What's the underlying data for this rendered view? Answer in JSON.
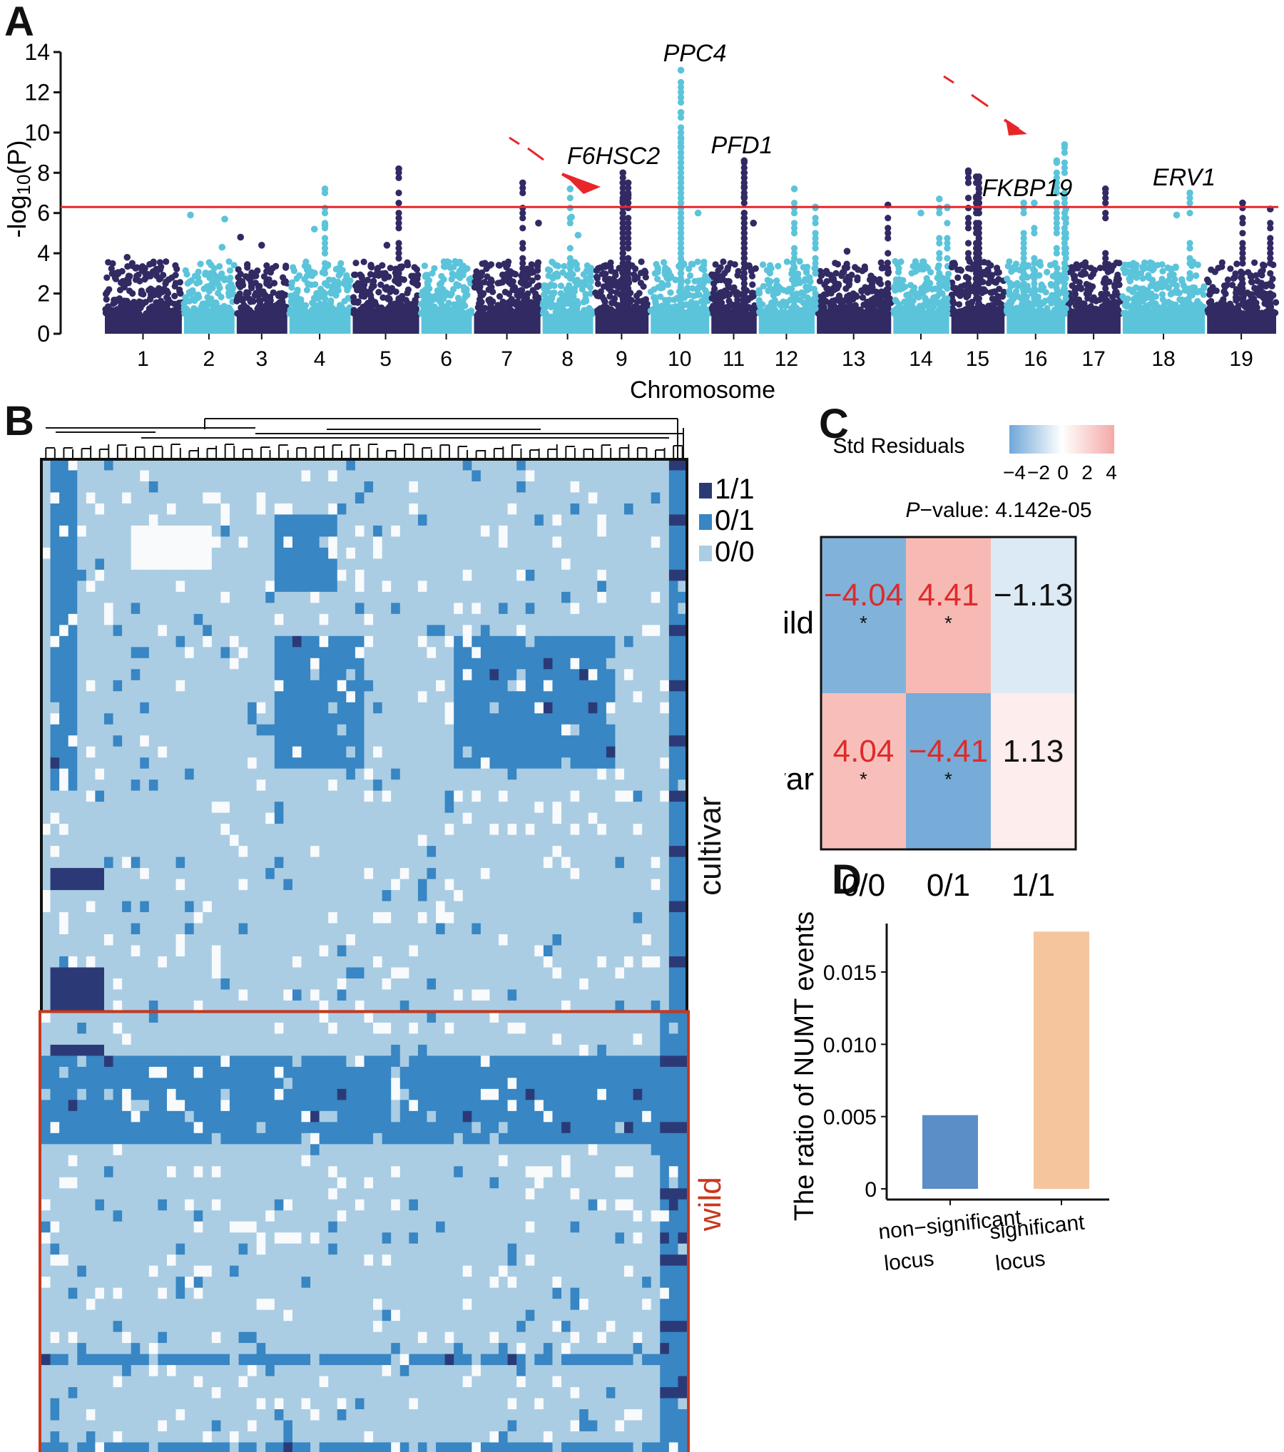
{
  "chart_data": [
    {
      "panel": "A",
      "type": "scatter",
      "subtype": "manhattan",
      "xlabel": "Chromosome",
      "ylabel": "-log10(P)",
      "ylim": [
        0,
        14
      ],
      "yticks": [
        0,
        2,
        4,
        6,
        8,
        10,
        12,
        14
      ],
      "threshold": 6.3,
      "threshold_color": "#e8262a",
      "colors": {
        "odd": "#312a63",
        "even": "#5bc4da"
      },
      "chromosomes": [
        "1",
        "2",
        "3",
        "4",
        "5",
        "6",
        "7",
        "8",
        "9",
        "10",
        "11",
        "12",
        "13",
        "14",
        "15",
        "16",
        "17",
        "18",
        "19"
      ],
      "chromosome_spans": [
        [
          0.0,
          6.0
        ],
        [
          6.0,
          10.0
        ],
        [
          10.0,
          14.0
        ],
        [
          14.0,
          18.8
        ],
        [
          18.8,
          24.0
        ],
        [
          24.0,
          28.0
        ],
        [
          28.0,
          33.2
        ],
        [
          33.2,
          37.2
        ],
        [
          37.2,
          41.4
        ],
        [
          41.4,
          46.0
        ],
        [
          46.0,
          49.6
        ],
        [
          49.6,
          54.0
        ],
        [
          54.0,
          59.8
        ],
        [
          59.8,
          64.2
        ],
        [
          64.2,
          68.4
        ],
        [
          68.4,
          73.0
        ],
        [
          73.0,
          77.2
        ],
        [
          77.2,
          83.6
        ],
        [
          83.6,
          89.0
        ]
      ],
      "notable_points": [
        {
          "chr": "1",
          "pos": 1.8,
          "y": 3.8
        },
        {
          "chr": "1",
          "pos": 4.3,
          "y": 3.2
        },
        {
          "chr": "2",
          "pos": 6.6,
          "y": 5.9
        },
        {
          "chr": "2",
          "pos": 9.2,
          "y": 5.7
        },
        {
          "chr": "2",
          "pos": 9.0,
          "y": 4.3
        },
        {
          "chr": "3",
          "pos": 10.4,
          "y": 4.8
        },
        {
          "chr": "3",
          "pos": 12.0,
          "y": 4.4
        },
        {
          "chr": "4",
          "pos": 16.8,
          "y": 7.2
        },
        {
          "chr": "4",
          "pos": 16.0,
          "y": 5.2
        },
        {
          "chr": "4",
          "pos": 16.8,
          "y": 5.4
        },
        {
          "chr": "5",
          "pos": 22.4,
          "y": 8.2
        },
        {
          "chr": "5",
          "pos": 21.5,
          "y": 4.4
        },
        {
          "chr": "6",
          "pos": 26.8,
          "y": 2.9
        },
        {
          "chr": "7",
          "pos": 31.8,
          "y": 7.5
        },
        {
          "chr": "7",
          "pos": 33.0,
          "y": 5.5
        },
        {
          "chr": "8",
          "pos": 35.4,
          "y": 7.2
        },
        {
          "chr": "8",
          "pos": 35.5,
          "y": 5.8
        },
        {
          "chr": "8",
          "pos": 36.0,
          "y": 4.9
        },
        {
          "chr": "9",
          "pos": 39.4,
          "y": 8.0
        },
        {
          "chr": "9",
          "pos": 39.4,
          "y": 7.5
        },
        {
          "chr": "9",
          "pos": 39.4,
          "y": 6.6
        },
        {
          "chr": "9",
          "pos": 39.8,
          "y": 7.5
        },
        {
          "chr": "9",
          "pos": 39.8,
          "y": 6.9
        },
        {
          "chr": "10",
          "pos": 43.8,
          "y": 13.1
        },
        {
          "chr": "10",
          "pos": 43.8,
          "y": 11.0
        },
        {
          "chr": "10",
          "pos": 43.8,
          "y": 9.7
        },
        {
          "chr": "10",
          "pos": 43.8,
          "y": 9.3
        },
        {
          "chr": "10",
          "pos": 45.1,
          "y": 6.0
        },
        {
          "chr": "11",
          "pos": 48.6,
          "y": 8.6
        },
        {
          "chr": "11",
          "pos": 48.6,
          "y": 8.0
        },
        {
          "chr": "11",
          "pos": 48.6,
          "y": 7.3
        },
        {
          "chr": "11",
          "pos": 48.6,
          "y": 6.8
        },
        {
          "chr": "11",
          "pos": 49.3,
          "y": 5.5
        },
        {
          "chr": "12",
          "pos": 52.4,
          "y": 7.2
        },
        {
          "chr": "12",
          "pos": 54.0,
          "y": 6.3
        },
        {
          "chr": "13",
          "pos": 56.4,
          "y": 4.1
        },
        {
          "chr": "13",
          "pos": 59.5,
          "y": 6.4
        },
        {
          "chr": "14",
          "pos": 62.0,
          "y": 6.0
        },
        {
          "chr": "14",
          "pos": 63.4,
          "y": 6.7
        },
        {
          "chr": "14",
          "pos": 64.0,
          "y": 6.3
        },
        {
          "chr": "15",
          "pos": 65.6,
          "y": 8.1
        },
        {
          "chr": "15",
          "pos": 66.2,
          "y": 7.8
        },
        {
          "chr": "15",
          "pos": 66.4,
          "y": 7.8
        },
        {
          "chr": "15",
          "pos": 66.4,
          "y": 7.2
        },
        {
          "chr": "15",
          "pos": 66.2,
          "y": 6.8
        },
        {
          "chr": "15",
          "pos": 66.4,
          "y": 6.5
        },
        {
          "chr": "16",
          "pos": 69.8,
          "y": 6.5
        },
        {
          "chr": "16",
          "pos": 70.6,
          "y": 6.5
        },
        {
          "chr": "16",
          "pos": 72.3,
          "y": 8.6
        },
        {
          "chr": "16",
          "pos": 72.9,
          "y": 9.4
        },
        {
          "chr": "16",
          "pos": 73.0,
          "y": 6.2
        },
        {
          "chr": "17",
          "pos": 76.0,
          "y": 7.2
        },
        {
          "chr": "18",
          "pos": 81.4,
          "y": 5.9
        },
        {
          "chr": "18",
          "pos": 82.4,
          "y": 7.0
        },
        {
          "chr": "19",
          "pos": 86.4,
          "y": 6.5
        },
        {
          "chr": "19",
          "pos": 88.5,
          "y": 6.2
        }
      ],
      "annotations": [
        {
          "label": "PPC4",
          "chr": "10",
          "y": 13.1,
          "italic": true
        },
        {
          "label": "F6HSC2",
          "chr": "9",
          "y": 8.0,
          "italic": true,
          "arrow": true
        },
        {
          "label": "PFD1",
          "chr": "11",
          "y": 8.6,
          "italic": true
        },
        {
          "label": "FKBP19",
          "chr": "15",
          "y": 7.8,
          "italic": true
        },
        {
          "label": "ERV1",
          "chr": "18",
          "y": 7.0,
          "italic": true
        },
        {
          "label": "",
          "chr": "16",
          "y": 9.4,
          "arrow": true
        }
      ]
    },
    {
      "panel": "B",
      "type": "heatmap",
      "subtype": "genotype-clustered-heatmap",
      "legend": [
        {
          "label": "1/1",
          "color": "#2b3a77"
        },
        {
          "label": "0/1",
          "color": "#3886c3"
        },
        {
          "label": "0/0",
          "color": "#aacde4"
        }
      ],
      "missing_color": "#f8fafc",
      "groups": [
        {
          "label": "cultivar",
          "color": "#111111",
          "fraction": 0.555
        },
        {
          "label": "wild",
          "color": "#c8381e",
          "fraction": 0.445
        }
      ],
      "columns": 72,
      "rows": 90
    },
    {
      "panel": "C",
      "type": "heatmap",
      "subtype": "standardized-residuals",
      "legend_title": "Std Residuals",
      "colorbar_ticks": [
        "−4",
        "−2",
        "0",
        "2",
        "4"
      ],
      "colorbar_range": [
        -4.41,
        4.41
      ],
      "subtitle_italic": "P",
      "subtitle_rest": "−value: 4.142e-05",
      "rows": [
        "wild",
        "cultivar"
      ],
      "columns": [
        "0/0",
        "0/1",
        "1/1"
      ],
      "values": [
        [
          -4.04,
          4.41,
          -1.13
        ],
        [
          4.04,
          -4.41,
          1.13
        ]
      ],
      "labels": [
        [
          "−4.04",
          "4.41",
          "−1.13"
        ],
        [
          "4.04",
          "−4.41",
          "1.13"
        ]
      ],
      "significant": [
        [
          true,
          true,
          false
        ],
        [
          true,
          true,
          false
        ]
      ],
      "significance_mark": "*",
      "significant_text_color": "#e02a2a"
    },
    {
      "panel": "D",
      "type": "bar",
      "categories": [
        "non−significant locus",
        "significant locus"
      ],
      "category_lines": [
        [
          "non−significant",
          "locus"
        ],
        [
          "significant",
          "locus"
        ]
      ],
      "values": [
        0.0051,
        0.0178
      ],
      "colors": [
        "#5b8ec6",
        "#f5c59e"
      ],
      "ylabel": "The ratio of NUMT events",
      "xlabel": "",
      "ylim": [
        0,
        0.0178
      ],
      "yticks": [
        "0",
        "0.005",
        "0.010",
        "0.015"
      ],
      "ytick_values": [
        0,
        0.005,
        0.01,
        0.015
      ]
    }
  ],
  "panels": {
    "a": "A",
    "b": "B",
    "c": "C",
    "d": "D"
  }
}
